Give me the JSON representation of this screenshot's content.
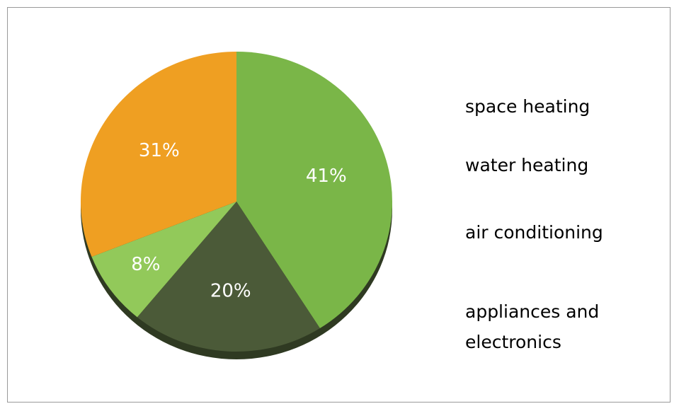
{
  "chart_data": {
    "type": "pie",
    "categories": [
      "space heating",
      "water heating",
      "air conditioning",
      "appliances and electronics"
    ],
    "values": [
      41,
      20,
      8,
      31
    ],
    "value_labels": [
      "41%",
      "20%",
      "8%",
      "31%"
    ],
    "colors": [
      "#7ab648",
      "#4b5a38",
      "#92c95a",
      "#ef9f22"
    ]
  }
}
